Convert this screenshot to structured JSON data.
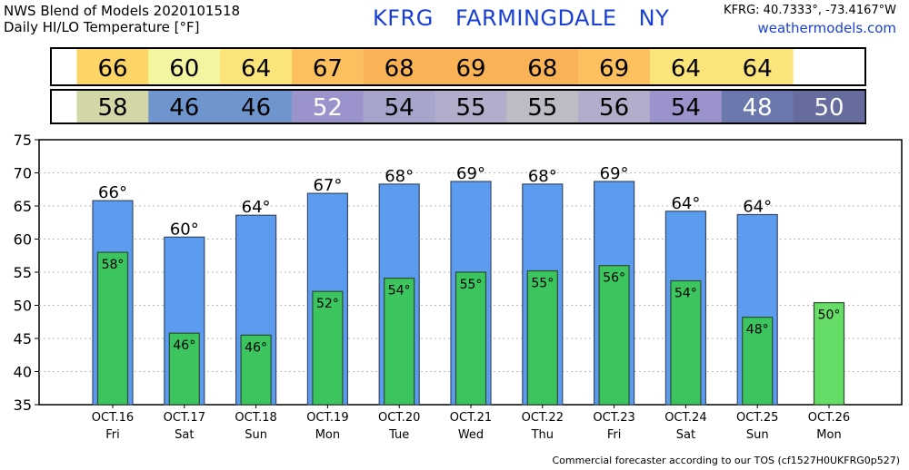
{
  "header": {
    "title_line1": "NWS Blend of Models 2020101518",
    "title_line2": "Daily HI/LO Temperature [°F]",
    "station_id": "KFRG",
    "station_name": "FARMINGDALE",
    "state": "NY",
    "coords": "KFRG: 40.7333°, -73.4167°W",
    "site": "weathermodels.com"
  },
  "footer": "Commercial forecaster according to our TOS (cf1527H0UKFRG0p527)",
  "chart_data": {
    "type": "bar",
    "categories": [
      "OCT.16",
      "OCT.17",
      "OCT.18",
      "OCT.19",
      "OCT.20",
      "OCT.21",
      "OCT.22",
      "OCT.23",
      "OCT.24",
      "OCT.25",
      "OCT.26"
    ],
    "weekdays": [
      "Fri",
      "Sat",
      "Sun",
      "Mon",
      "Tue",
      "Wed",
      "Thu",
      "Fri",
      "Sat",
      "Sun",
      "Mon"
    ],
    "series": [
      {
        "values": [
          65.8,
          60.3,
          63.6,
          66.9,
          68.3,
          68.7,
          68.3,
          68.7,
          64.2,
          63.7,
          null
        ]
      },
      {
        "values": [
          58.0,
          45.8,
          45.5,
          52.1,
          54.1,
          55.0,
          55.2,
          56.0,
          53.7,
          48.2,
          50.4
        ]
      }
    ],
    "hi_labels": [
      "66",
      "60",
      "64",
      "67",
      "68",
      "69",
      "68",
      "69",
      "64",
      "64",
      ""
    ],
    "lo_labels": [
      "58",
      "46",
      "46",
      "52",
      "54",
      "55",
      "55",
      "56",
      "54",
      "48",
      "50"
    ],
    "ylim": [
      35,
      75
    ],
    "yticks": [
      35,
      40,
      45,
      50,
      55,
      60,
      65,
      70,
      75
    ],
    "grid": true,
    "colors": {
      "hi_bar": "#5b9cf0",
      "lo_bar": "#3cc45f",
      "lo_bar_last": "#66dd66",
      "hi_strip": [
        "#fdd466",
        "#f3f5a0",
        "#fbe57b",
        "#fdc05e",
        "#f9b356",
        "#f9b356",
        "#f9b356",
        "#fdc05e",
        "#fbe57b",
        "#fbe57b"
      ],
      "lo_strip": [
        "#d3d6a6",
        "#6f95cf",
        "#6f95cf",
        "#9b93cc",
        "#a8a5cc",
        "#b1adcb",
        "#bdbcc4",
        "#b1adcb",
        "#9b93cc",
        "#6a78ad",
        "#666c9e"
      ]
    }
  }
}
